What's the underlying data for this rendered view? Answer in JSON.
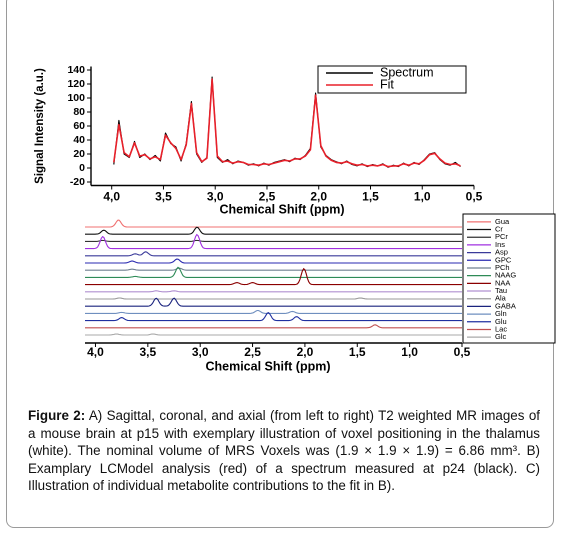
{
  "chart_data": [
    {
      "type": "line",
      "xlabel": "Chemical Shift (ppm)",
      "ylabel": "Signal Intensity (a.u.)",
      "xlim": [
        4.2,
        0.5
      ],
      "xticks": [
        {
          "value": 4.0,
          "label": "4,0"
        },
        {
          "value": 3.5,
          "label": "3,5"
        },
        {
          "value": 3.0,
          "label": "3,0"
        },
        {
          "value": 2.5,
          "label": "2,5"
        },
        {
          "value": 2.0,
          "label": "2,0"
        },
        {
          "value": 1.5,
          "label": "1,5"
        },
        {
          "value": 1.0,
          "label": "1,0"
        },
        {
          "value": 0.5,
          "label": "0,5"
        }
      ],
      "ylim": [
        -25,
        145
      ],
      "yticks": [
        -20,
        0,
        20,
        40,
        60,
        80,
        100,
        120,
        140
      ],
      "legend": "upper right",
      "x": [
        3.98,
        3.93,
        3.88,
        3.83,
        3.78,
        3.73,
        3.68,
        3.63,
        3.58,
        3.53,
        3.48,
        3.43,
        3.38,
        3.33,
        3.28,
        3.23,
        3.18,
        3.13,
        3.08,
        3.03,
        2.98,
        2.93,
        2.88,
        2.83,
        2.78,
        2.73,
        2.68,
        2.63,
        2.58,
        2.53,
        2.48,
        2.43,
        2.38,
        2.33,
        2.28,
        2.23,
        2.18,
        2.13,
        2.08,
        2.03,
        1.98,
        1.93,
        1.88,
        1.83,
        1.78,
        1.73,
        1.68,
        1.63,
        1.58,
        1.53,
        1.48,
        1.43,
        1.38,
        1.33,
        1.28,
        1.23,
        1.18,
        1.13,
        1.08,
        1.03,
        0.98,
        0.93,
        0.88,
        0.83,
        0.78,
        0.73,
        0.68,
        0.63
      ],
      "series": [
        {
          "name": "Spectrum",
          "color": "#000000",
          "values": [
            5,
            68,
            20,
            15,
            38,
            15,
            20,
            12,
            18,
            10,
            50,
            35,
            30,
            10,
            35,
            95,
            20,
            8,
            15,
            130,
            15,
            8,
            12,
            6,
            10,
            8,
            4,
            6,
            3,
            7,
            4,
            8,
            10,
            12,
            9,
            14,
            12,
            18,
            28,
            107,
            30,
            18,
            12,
            9,
            6,
            10,
            5,
            3,
            6,
            2,
            5,
            3,
            6,
            1,
            4,
            2,
            7,
            3,
            8,
            5,
            12,
            20,
            22,
            12,
            6,
            4,
            8,
            2
          ]
        },
        {
          "name": "Fit",
          "color": "#e8202a",
          "values": [
            8,
            62,
            22,
            16,
            36,
            17,
            19,
            13,
            16,
            12,
            47,
            36,
            28,
            12,
            33,
            92,
            22,
            9,
            14,
            127,
            17,
            9,
            10,
            7,
            9,
            8,
            5,
            5,
            4,
            6,
            5,
            7,
            9,
            11,
            10,
            13,
            13,
            17,
            26,
            104,
            32,
            17,
            11,
            8,
            7,
            9,
            6,
            4,
            5,
            3,
            4,
            3,
            5,
            2,
            3,
            3,
            6,
            4,
            7,
            6,
            11,
            19,
            21,
            13,
            7,
            5,
            6,
            3
          ]
        }
      ]
    },
    {
      "type": "spectra",
      "xlabel": "Chemical Shift (ppm)",
      "xlim": [
        4.1,
        0.5
      ],
      "xticks": [
        {
          "value": 4.0,
          "label": "4,0"
        },
        {
          "value": 3.5,
          "label": "3,5"
        },
        {
          "value": 3.0,
          "label": "3,0"
        },
        {
          "value": 2.5,
          "label": "2,5"
        },
        {
          "value": 2.0,
          "label": "2,0"
        },
        {
          "value": 1.5,
          "label": "1,5"
        },
        {
          "value": 1.0,
          "label": "1,0"
        },
        {
          "value": 0.5,
          "label": "0,5"
        }
      ],
      "legend": "right",
      "series": [
        {
          "name": "Gua",
          "color": "#f07070",
          "x": [
            3.78
          ],
          "values": [
            7
          ]
        },
        {
          "name": "Cr",
          "color": "#111111",
          "x": [
            3.92,
            3.03
          ],
          "values": [
            4,
            7
          ]
        },
        {
          "name": "PCr",
          "color": "#333333",
          "x": [
            3.93,
            3.03
          ],
          "values": [
            1,
            1
          ]
        },
        {
          "name": "Ins",
          "color": "#a030e0",
          "x": [
            3.93,
            3.03
          ],
          "values": [
            12,
            14
          ]
        },
        {
          "name": "Asp",
          "color": "#3a3a9a",
          "x": [
            3.62,
            3.52
          ],
          "values": [
            2,
            4
          ]
        },
        {
          "name": "GPC",
          "color": "#2a2ab0",
          "x": [
            3.65,
            3.22
          ],
          "values": [
            2,
            4
          ]
        },
        {
          "name": "PCh",
          "color": "#708090",
          "x": [
            3.65,
            3.2
          ],
          "values": [
            1,
            2
          ]
        },
        {
          "name": "NAAG",
          "color": "#2e8b57",
          "x": [
            3.62,
            3.21
          ],
          "values": [
            1,
            10
          ]
        },
        {
          "name": "NAA",
          "color": "#8b0000",
          "x": [
            2.65,
            2.5,
            2.01
          ],
          "values": [
            2,
            2,
            16
          ]
        },
        {
          "name": "Tau",
          "color": "#b090d0",
          "x": [
            3.42,
            3.25
          ],
          "values": [
            1,
            1
          ]
        },
        {
          "name": "Ala",
          "color": "#999999",
          "x": [
            3.77,
            1.47
          ],
          "values": [
            1,
            1
          ]
        },
        {
          "name": "GABA",
          "color": "#1a237e",
          "x": [
            3.42,
            3.25
          ],
          "values": [
            8,
            8
          ]
        },
        {
          "name": "Gln",
          "color": "#6f8fbf",
          "x": [
            3.75,
            2.45,
            2.12
          ],
          "values": [
            1,
            3,
            2
          ]
        },
        {
          "name": "Glu",
          "color": "#2030a0",
          "x": [
            3.75,
            2.35,
            2.08
          ],
          "values": [
            3,
            8,
            4
          ]
        },
        {
          "name": "Lac",
          "color": "#c05050",
          "x": [
            1.33
          ],
          "values": [
            3
          ]
        },
        {
          "name": "Glc",
          "color": "#aaaaaa",
          "x": [
            3.8,
            3.45
          ],
          "values": [
            1,
            1
          ]
        }
      ]
    }
  ],
  "caption": {
    "label": "Figure 2:",
    "text": "A) Sagittal, coronal, and axial (from left to right) T2 weighted MR images of a mouse brain at p15 with exemplary illustration of voxel positioning in the thalamus (white). The nominal volume of MRS Voxels was (1.9 × 1.9 × 1.9) = 6.86 mm³. B) Examplary LCModel analysis (red) of a spectrum measured at p24 (black). C) Illustration of individual metabolite contributions to the fit in B)."
  }
}
